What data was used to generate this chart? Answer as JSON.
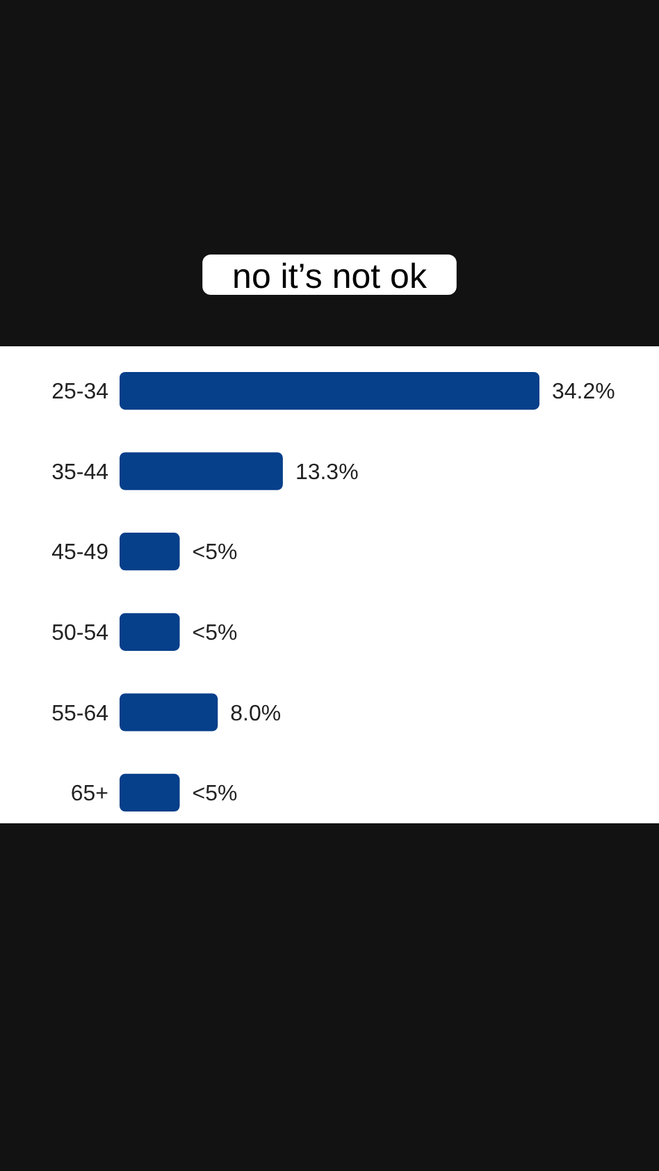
{
  "chart_data": {
    "type": "bar",
    "orientation": "horizontal",
    "title": "no it’s not ok",
    "categories": [
      "25-34",
      "35-44",
      "45-49",
      "50-54",
      "55-64",
      "65+"
    ],
    "values": [
      34.2,
      13.3,
      4.9,
      4.9,
      8.0,
      4.9
    ],
    "value_labels": [
      "34.2%",
      "13.3%",
      "<5%",
      "<5%",
      "8.0%",
      "<5%"
    ],
    "color": "#063f8a"
  }
}
